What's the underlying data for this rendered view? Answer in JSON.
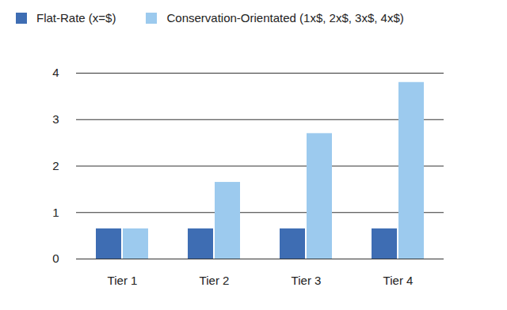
{
  "chart_data": {
    "type": "bar",
    "categories": [
      "Tier 1",
      "Tier 2",
      "Tier 3",
      "Tier 4"
    ],
    "series": [
      {
        "name": "Flat-Rate (x=$)",
        "color": "#3e6db3",
        "values": [
          0.65,
          0.65,
          0.65,
          0.65
        ]
      },
      {
        "name": "Conservation-Orientated (1x$, 2x$, 3x$, 4x$)",
        "color": "#9ccaee",
        "values": [
          0.65,
          1.65,
          2.7,
          3.8
        ]
      }
    ],
    "ylim": [
      0,
      4
    ],
    "yticks": [
      0,
      1,
      2,
      3,
      4
    ],
    "grid": true,
    "legend": "top"
  }
}
